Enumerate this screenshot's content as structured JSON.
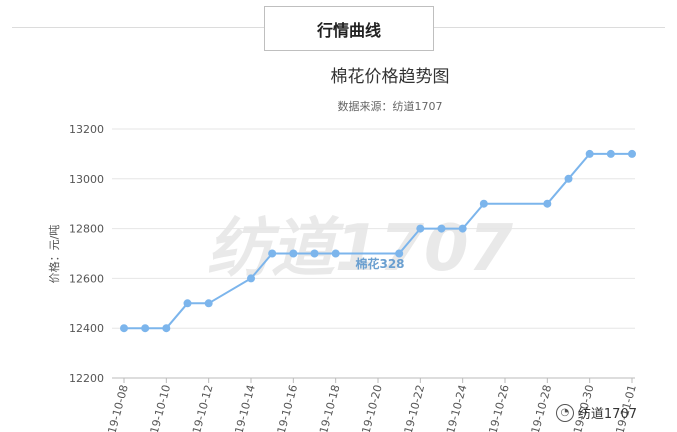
{
  "section": {
    "title": "行情曲线"
  },
  "chart_data": {
    "type": "line",
    "title": "棉花价格趋势图",
    "subtitle": "数据来源：纺道1707",
    "ylabel": "价格：元/吨",
    "xlabel": "",
    "ylim": [
      12200,
      13200
    ],
    "yticks": [
      12200,
      12400,
      12600,
      12800,
      13000,
      13200
    ],
    "xtick_labels": [
      "19-10-08",
      "19-10-10",
      "19-10-12",
      "19-10-14",
      "19-10-16",
      "19-10-18",
      "19-10-20",
      "19-10-22",
      "19-10-24",
      "19-10-26",
      "19-10-28",
      "19-10-30",
      "19-11-01"
    ],
    "grid": "horizontal",
    "color": "#7cb5ec",
    "series": [
      {
        "name": "棉花328",
        "points": [
          [
            "19-10-08",
            12400
          ],
          [
            "19-10-09",
            12400
          ],
          [
            "19-10-10",
            12400
          ],
          [
            "19-10-11",
            12500
          ],
          [
            "19-10-12",
            12500
          ],
          [
            "19-10-14",
            12600
          ],
          [
            "19-10-15",
            12700
          ],
          [
            "19-10-16",
            12700
          ],
          [
            "19-10-17",
            12700
          ],
          [
            "19-10-18",
            12700
          ],
          [
            "19-10-21",
            12700
          ],
          [
            "19-10-22",
            12800
          ],
          [
            "19-10-23",
            12800
          ],
          [
            "19-10-24",
            12800
          ],
          [
            "19-10-25",
            12900
          ],
          [
            "19-10-28",
            12900
          ],
          [
            "19-10-29",
            13000
          ],
          [
            "19-10-30",
            13100
          ],
          [
            "19-10-31",
            13100
          ],
          [
            "19-11-01",
            13100
          ]
        ]
      }
    ],
    "data_label": "棉花328",
    "watermark": "纺道1707"
  },
  "badge": {
    "text": "纺道1707"
  }
}
